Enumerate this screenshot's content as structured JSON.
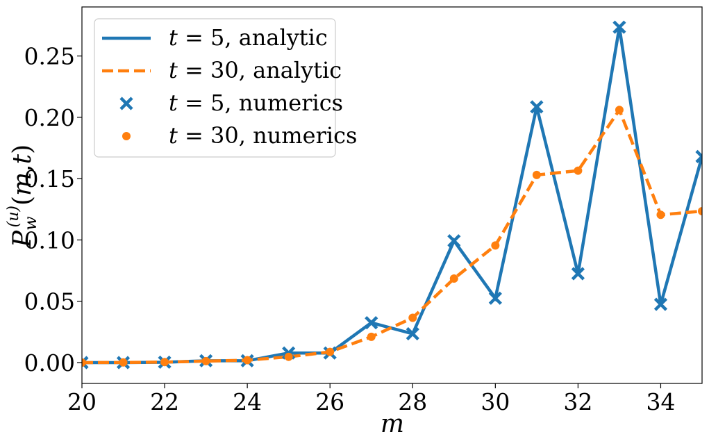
{
  "chart_data": {
    "type": "line",
    "xlabel": "m",
    "ylabel": "P_w^{(u)}(m,t)",
    "xlim": [
      20,
      35
    ],
    "ylim": [
      -0.017,
      0.29
    ],
    "x_ticks": [
      "20",
      "22",
      "24",
      "26",
      "28",
      "30",
      "32",
      "34"
    ],
    "y_ticks": [
      "0.00",
      "0.05",
      "0.10",
      "0.15",
      "0.20",
      "0.25"
    ],
    "grid": false,
    "legend_position": "top-left",
    "x": [
      20,
      21,
      22,
      23,
      24,
      25,
      26,
      27,
      28,
      29,
      30,
      31,
      32,
      33,
      34,
      35
    ],
    "series": [
      {
        "name": "t = 5, analytic",
        "style": "solid-line",
        "color": "#1f77b4",
        "values": [
          0.0,
          0.0,
          0.0003,
          0.0015,
          0.0015,
          0.0078,
          0.0078,
          0.0325,
          0.0235,
          0.0993,
          0.0525,
          0.2085,
          0.0725,
          0.2735,
          0.0475,
          0.168
        ]
      },
      {
        "name": "t = 30, analytic",
        "style": "dashed-line",
        "color": "#ff7f0e",
        "values": [
          0.0,
          0.0001,
          0.0004,
          0.0012,
          0.002,
          0.0047,
          0.0087,
          0.021,
          0.0365,
          0.0685,
          0.0955,
          0.153,
          0.1565,
          0.206,
          0.1205,
          0.1235
        ]
      },
      {
        "name": "t = 5, numerics",
        "style": "x-marker",
        "color": "#1f77b4",
        "values": [
          0.0,
          0.0,
          0.0003,
          0.0015,
          0.0015,
          0.0078,
          0.0078,
          0.0325,
          0.0235,
          0.0993,
          0.0525,
          0.2085,
          0.0725,
          0.2735,
          0.0475,
          0.168
        ]
      },
      {
        "name": "t = 30, numerics",
        "style": "dot-marker",
        "color": "#ff7f0e",
        "values": [
          0.0,
          0.0001,
          0.0004,
          0.0012,
          0.002,
          0.0047,
          0.0087,
          0.021,
          0.0365,
          0.0685,
          0.0955,
          0.153,
          0.1565,
          0.206,
          0.1205,
          0.1235
        ]
      }
    ],
    "legend": {
      "entries": [
        {
          "var": "t",
          "rest": " = 5, analytic"
        },
        {
          "var": "t",
          "rest": " = 30, analytic"
        },
        {
          "var": "t",
          "rest": " = 5, numerics"
        },
        {
          "var": "t",
          "rest": " = 30, numerics"
        }
      ]
    }
  }
}
